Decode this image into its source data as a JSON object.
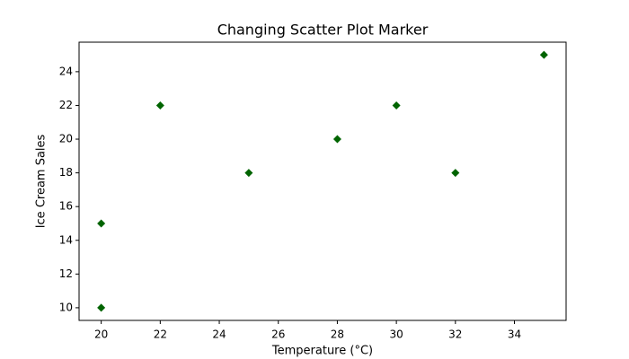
{
  "chart_data": {
    "type": "scatter",
    "title": "Changing Scatter Plot Marker",
    "x_label": "Temperature (°C)",
    "y_label": "Ice Cream Sales",
    "x": [
      20,
      20,
      22,
      25,
      28,
      30,
      32,
      35
    ],
    "values": [
      15,
      10,
      22,
      18,
      20,
      22,
      18,
      25
    ],
    "color": "#006400",
    "marker": "D",
    "xlim": [
      19.25,
      35.75
    ],
    "xticks": [
      20,
      22,
      24,
      26,
      28,
      30,
      32,
      34
    ],
    "ylim": [
      9.25,
      25.75
    ],
    "yticks": [
      10,
      12,
      14,
      16,
      18,
      20,
      22,
      24
    ],
    "grid": false
  }
}
